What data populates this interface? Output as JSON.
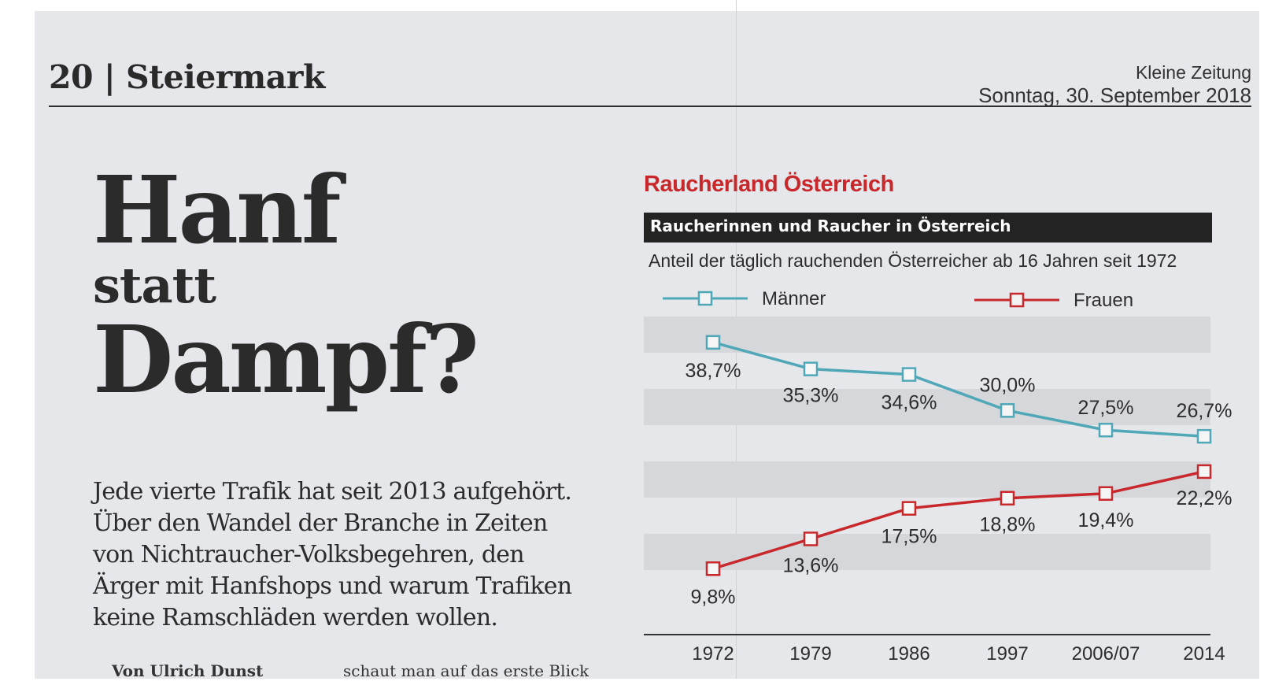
{
  "page": {
    "section": "20 | Steiermark",
    "paper_name": "Kleine Zeitung",
    "date": "Sonntag, 30. September 2018"
  },
  "article": {
    "headline": [
      "Hanf",
      "statt",
      "Dampf?"
    ],
    "lead": [
      "Jede vierte Trafik hat seit 2013 aufgehört.",
      "Über den Wandel der Branche in Zeiten",
      "von Nichtraucher-Volksbegehren, den",
      "Ärger mit Hanfshops und warum Trafiken",
      "keine Ramschläden werden wollen."
    ],
    "byline_cut": "Von Ulrich Dunst",
    "body_cut": "schaut man auf das erste Blick"
  },
  "chart": {
    "title": "Raucherland Österreich",
    "subtitle": "Raucherinnen und Raucher in Österreich",
    "description": "Anteil der täglich rauchenden Österreicher ab 16 Jahren seit 1972"
  },
  "chart_data": {
    "type": "line",
    "categories": [
      "1972",
      "1979",
      "1986",
      "1997",
      "2006/07",
      "2014"
    ],
    "series": [
      {
        "name": "Männer",
        "color": "#4fa7b8",
        "values": [
          38.7,
          35.3,
          34.6,
          30.0,
          27.5,
          26.7
        ],
        "labels": [
          "38,7%",
          "35,3%",
          "34,6%",
          "30,0%",
          "27,5%",
          "26,7%"
        ]
      },
      {
        "name": "Frauen",
        "color": "#c8282b",
        "values": [
          9.8,
          13.6,
          17.5,
          18.8,
          19.4,
          22.2
        ],
        "labels": [
          "9,8%",
          "13,6%",
          "17,5%",
          "18,8%",
          "19,4%",
          "22,2%"
        ]
      }
    ],
    "ylim": [
      5,
      42
    ],
    "grid": "alternating horizontal bands",
    "legend": "top",
    "colors": {
      "title": "#c8282b",
      "band": "#d5d7da",
      "subtitle_bar": "#232323"
    }
  }
}
